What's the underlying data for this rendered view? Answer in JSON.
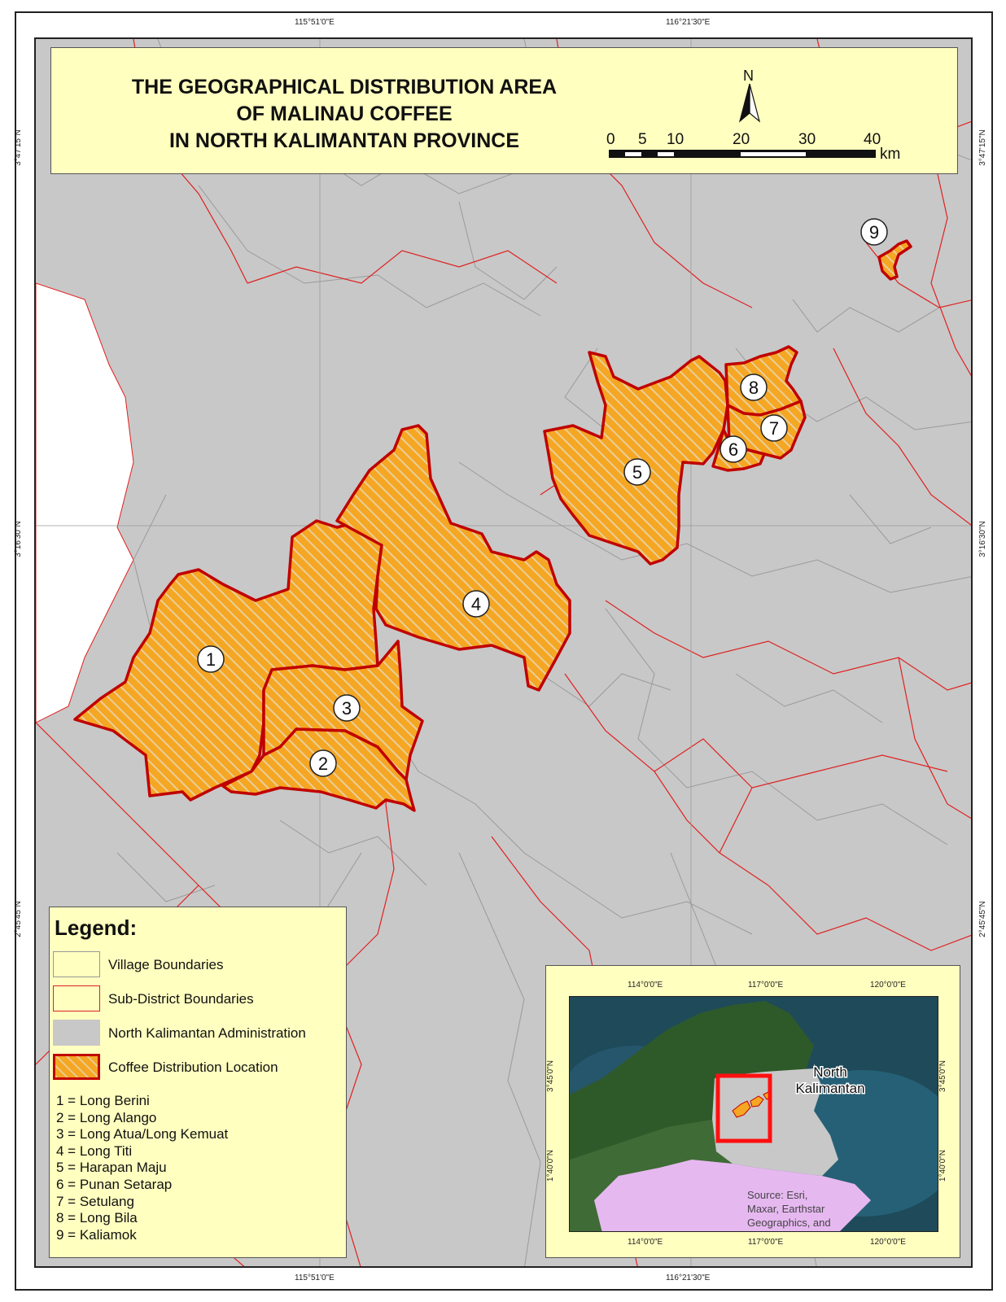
{
  "title": {
    "line1": "THE GEOGRAPHICAL DISTRIBUTION AREA",
    "line2": "OF MALINAU COFFEE",
    "line3": "IN NORTH KALIMANTAN PROVINCE"
  },
  "north_arrow": {
    "label": "N"
  },
  "scale_bar": {
    "ticks": [
      "0",
      "5",
      "10",
      "20",
      "30",
      "40"
    ],
    "unit": "km"
  },
  "coordinates": {
    "top": [
      "115°51'0\"E",
      "116°21'30\"E"
    ],
    "bottom": [
      "115°51'0\"E",
      "116°21'30\"E"
    ],
    "left": [
      "3°47'15\"N",
      "3°16'30\"N",
      "2°45'45\"N"
    ],
    "right": [
      "3°47'15\"N",
      "3°16'30\"N",
      "2°45'45\"N"
    ]
  },
  "area_labels": [
    "1",
    "2",
    "3",
    "4",
    "5",
    "6",
    "7",
    "8",
    "9"
  ],
  "legend": {
    "title": "Legend:",
    "items": [
      {
        "label": "Village Boundaries",
        "fill": "#ffffc0",
        "stroke": "#999999"
      },
      {
        "label": "Sub-District Boundaries",
        "fill": "#ffffc0",
        "stroke": "#e02020"
      },
      {
        "label": "North Kalimantan Administration",
        "fill": "#c8c8c8",
        "stroke": "#c8c8c8"
      },
      {
        "label": "Coffee Distribution Location",
        "fill": "#f5a623",
        "stroke": "#c00000"
      }
    ],
    "villages": [
      "1 = Long Berini",
      "2 = Long Alango",
      "3 = Long Atua/Long Kemuat",
      "4 = Long Titi",
      "5 = Harapan Maju",
      "6 = Punan Setarap",
      "7 = Setulang",
      "8 = Long Bila",
      "9 = Kaliamok"
    ]
  },
  "inset": {
    "top_coords": [
      "114°0'0\"E",
      "117°0'0\"E",
      "120°0'0\"E"
    ],
    "bottom_coords": [
      "114°0'0\"E",
      "117°0'0\"E",
      "120°0'0\"E"
    ],
    "left_coords": [
      "3°45'0\"N",
      "1°40'0\"N"
    ],
    "right_coords": [
      "3°45'0\"N",
      "1°40'0\"N"
    ],
    "region_label_1": "North",
    "region_label_2": "Kalimantan",
    "source_1": "Source: Esri,",
    "source_2": "Maxar, Earthstar",
    "source_3": "Geographics, and"
  },
  "colors": {
    "coffee_fill": "#f5a623",
    "coffee_outline": "#c00000",
    "subdistrict": "#e02020",
    "village": "#9a9a9a",
    "admin": "#c8c8c8",
    "panel": "#ffffc0"
  }
}
